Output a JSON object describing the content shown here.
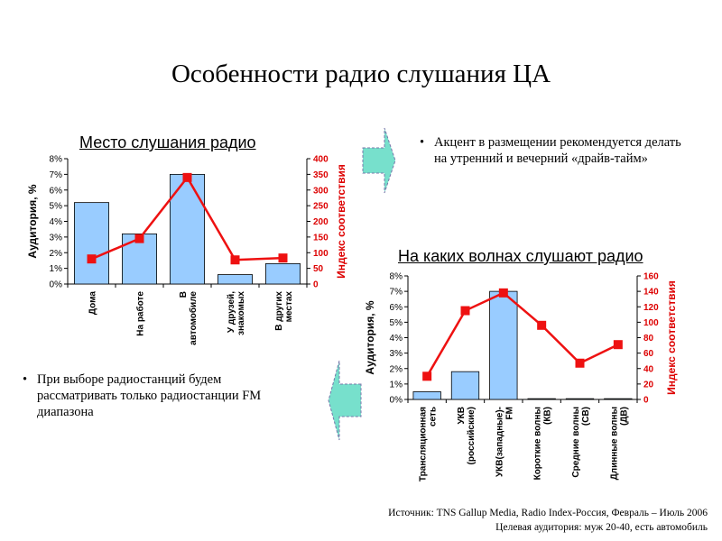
{
  "slide": {
    "title": "Особенности радио слушания ЦА",
    "bullet1": "Акцент в размещении рекомендуется делать на утренний и вечерний «драйв-тайм»",
    "bullet2": "При выборе радиостанций будем рассматривать только радиостанции FM диапазона",
    "source_line1": "Источник: TNS Gallup Media, Radio Index-Россия, Февраль – Июль 2006",
    "source_line2": "Целевая аудитория: муж 20-40, есть автомобиль",
    "bullet_char": "•"
  },
  "colors": {
    "bar": "#99ccff",
    "line": "#ee1111",
    "axis_right": "#dd0000",
    "arrow": "#77e0cc"
  },
  "chart_data": [
    {
      "type": "bar",
      "title": "Место слушания радио",
      "ylabel": "Аудитория, %",
      "y2label": "Индекс соответствия",
      "categories": [
        [
          "Дома"
        ],
        [
          "На работе"
        ],
        [
          "В",
          "автомобиле"
        ],
        [
          "У друзей,",
          "знакомых"
        ],
        [
          "В других",
          "местах"
        ]
      ],
      "values": [
        5.2,
        3.2,
        7.0,
        0.6,
        1.3
      ],
      "line_values": [
        80,
        145,
        340,
        77,
        83
      ],
      "ylim": [
        0,
        8
      ],
      "yticks": [
        0,
        1,
        2,
        3,
        4,
        5,
        6,
        7,
        8
      ],
      "y2lim": [
        0,
        400
      ],
      "y2ticks": [
        0,
        50,
        100,
        150,
        200,
        250,
        300,
        350,
        400
      ]
    },
    {
      "type": "bar",
      "title": "На каких волнах слушают радио",
      "ylabel": "Аудитория, %",
      "y2label": "Индекс соответствия",
      "categories": [
        [
          "Трансляционная",
          "сеть"
        ],
        [
          "УКВ",
          "(российские)"
        ],
        [
          "УКВ(западные)-",
          "FM"
        ],
        [
          "Короткие волны",
          "(КВ)"
        ],
        [
          "Средние волны",
          "(СВ)"
        ],
        [
          "Длинные волны",
          "(ДВ)"
        ]
      ],
      "values": [
        0.5,
        1.8,
        7.0,
        0.05,
        0.05,
        0.05
      ],
      "line_values": [
        30,
        115,
        138,
        96,
        47,
        71
      ],
      "ylim": [
        0,
        8
      ],
      "yticks": [
        0,
        1,
        2,
        3,
        4,
        5,
        6,
        7,
        8
      ],
      "y2lim": [
        0,
        160
      ],
      "y2ticks": [
        0,
        20,
        40,
        60,
        80,
        100,
        120,
        140,
        160
      ]
    }
  ]
}
